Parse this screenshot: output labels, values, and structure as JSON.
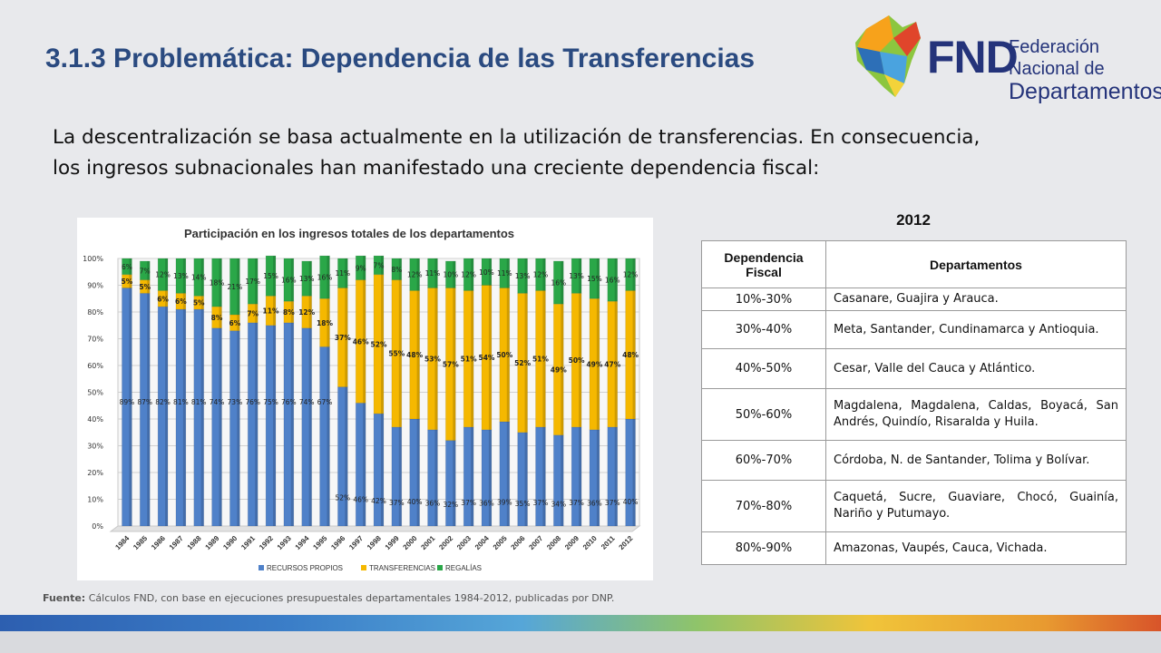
{
  "header": {
    "title": "3.1.3 Problemática: Dependencia de las Transferencias",
    "logo_acronym": "FND",
    "logo_name_line1": "Federación Nacional de",
    "logo_name_line2": "Departamentos"
  },
  "intro": {
    "line1": "La descentralización se basa actualmente en la utilización de transferencias. En consecuencia,",
    "line2": "los ingresos subnacionales han manifestado una creciente dependencia  fiscal:"
  },
  "colors": {
    "propios": "#4f81c9",
    "transferencias": "#f5b800",
    "regalias": "#2aa748",
    "title": "#2a4a80"
  },
  "chart_data": {
    "type": "bar",
    "stacked": true,
    "title": "Participación en los ingresos totales de los departamentos",
    "categories": [
      "1984",
      "1985",
      "1986",
      "1987",
      "1988",
      "1989",
      "1990",
      "1991",
      "1992",
      "1993",
      "1994",
      "1995",
      "1996",
      "1997",
      "1998",
      "1999",
      "2000",
      "2001",
      "2002",
      "2003",
      "2004",
      "2005",
      "2006",
      "2007",
      "2008",
      "2009",
      "2010",
      "2011",
      "2012"
    ],
    "series": [
      {
        "name": "RECURSOS PROPIOS",
        "values": [
          89,
          87,
          82,
          81,
          81,
          74,
          73,
          76,
          75,
          76,
          74,
          67,
          52,
          46,
          42,
          37,
          40,
          36,
          32,
          37,
          36,
          39,
          35,
          37,
          34,
          37,
          36,
          37,
          40
        ]
      },
      {
        "name": "TRANSFERENCIAS",
        "values": [
          5,
          5,
          6,
          6,
          5,
          8,
          6,
          7,
          11,
          8,
          12,
          18,
          37,
          46,
          52,
          55,
          48,
          53,
          57,
          51,
          54,
          50,
          52,
          51,
          49,
          50,
          49,
          47,
          48
        ]
      },
      {
        "name": "REGALÍAS",
        "values": [
          6,
          7,
          12,
          13,
          14,
          18,
          21,
          17,
          15,
          16,
          13,
          16,
          11,
          9,
          7,
          8,
          12,
          11,
          10,
          12,
          10,
          11,
          13,
          12,
          16,
          13,
          15,
          16,
          12
        ]
      }
    ],
    "y_ticks": [
      "0%",
      "10%",
      "20%",
      "30%",
      "40%",
      "50%",
      "60%",
      "70%",
      "80%",
      "90%",
      "100%"
    ],
    "ylim": [
      0,
      100
    ],
    "legend": "bottom"
  },
  "table": {
    "year": "2012",
    "headers": [
      "Dependencia Fiscal",
      "Departamentos"
    ],
    "rows": [
      {
        "range": "10%-30%",
        "deps": "Casanare, Guajira y Arauca."
      },
      {
        "range": "30%-40%",
        "deps": "Meta, Santander, Cundinamarca y Antioquia."
      },
      {
        "range": "40%-50%",
        "deps": "Cesar, Valle del Cauca y Atlántico."
      },
      {
        "range": "50%-60%",
        "deps": "Magdalena, Magdalena, Caldas, Boyacá, San Andrés, Quindío, Risaralda y Huila."
      },
      {
        "range": "60%-70%",
        "deps": "Córdoba, N. de Santander, Tolima y Bolívar."
      },
      {
        "range": "70%-80%",
        "deps": "Caquetá, Sucre, Guaviare, Chocó, Guainía, Nariño y Putumayo."
      },
      {
        "range": "80%-90%",
        "deps": "Amazonas, Vaupés, Cauca, Vichada."
      }
    ]
  },
  "source": {
    "label": "Fuente:",
    "text": " Cálculos FND, con base en ejecuciones presupuestales departamentales 1984-2012,  publicadas por DNP."
  }
}
